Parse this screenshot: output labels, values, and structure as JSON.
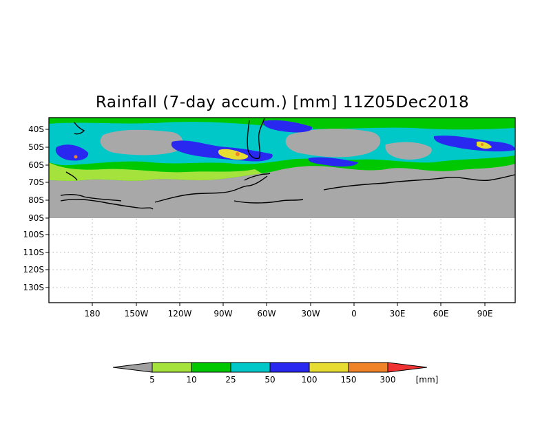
{
  "title": "Rainfall (7-day accum.) [mm] 11Z05Dec2018",
  "lat_labels": [
    "40S",
    "50S",
    "60S",
    "70S",
    "80S",
    "90S",
    "100S",
    "110S",
    "120S",
    "130S"
  ],
  "lon_labels": [
    "180",
    "150W",
    "120W",
    "90W",
    "60W",
    "30W",
    "0",
    "30E",
    "60E",
    "90E"
  ],
  "colorbar": {
    "unit": "[mm]",
    "thresholds": [
      "5",
      "10",
      "25",
      "50",
      "100",
      "150",
      "300"
    ],
    "colors": [
      "#a0a0a0",
      "#a6e23c",
      "#00c800",
      "#00c8c8",
      "#2828f0",
      "#e6dc32",
      "#f08228",
      "#f03232"
    ]
  },
  "map_colors": {
    "no_data": "#a8a8a8",
    "coast": "#000000",
    "grid": "#b0b0b0"
  },
  "chart_data": {
    "type": "heatmap",
    "title": "Rainfall (7-day accum.) [mm] 11Z05Dec2018",
    "variable": "7-day accumulated rainfall",
    "units": "mm",
    "lat_range": [
      "35S",
      "135S"
    ],
    "lon_range": [
      "150E",
      "110E"
    ],
    "note_levels_mm": [
      5,
      10,
      25,
      50,
      100,
      150,
      300
    ],
    "grid": true
  }
}
